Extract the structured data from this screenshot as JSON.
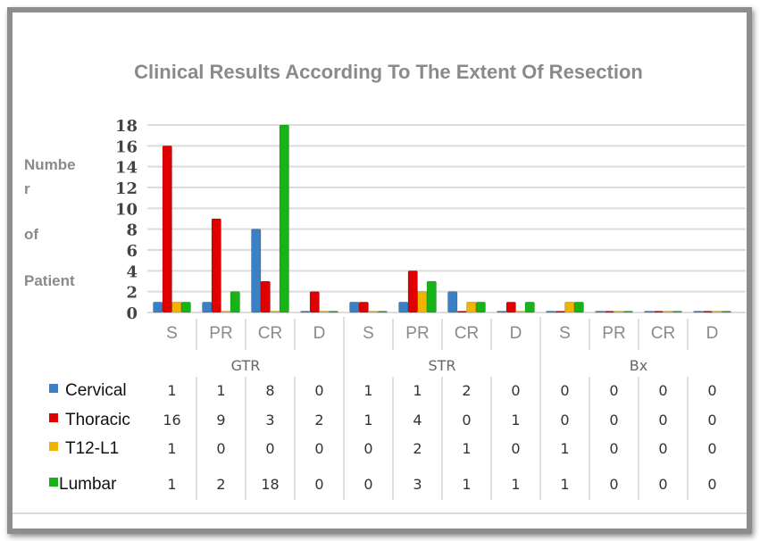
{
  "chart_data": {
    "type": "bar",
    "title": "Clinical Results According To The Extent Of Resection",
    "ylabel_lines": [
      "Numbe",
      "r",
      "of",
      "Patient"
    ],
    "ylim": [
      0,
      18
    ],
    "yticks": [
      0,
      2,
      4,
      6,
      8,
      10,
      12,
      14,
      16,
      18
    ],
    "grid": true,
    "legend": "bottom-table",
    "groups": [
      "GTR",
      "STR",
      "Bx"
    ],
    "categories": [
      "S",
      "PR",
      "CR",
      "D",
      "S",
      "PR",
      "CR",
      "D",
      "S",
      "PR",
      "CR",
      "D"
    ],
    "series": [
      {
        "name": "Cervical",
        "color": "#3b7fc4",
        "values": [
          1,
          1,
          8,
          0,
          1,
          1,
          2,
          0,
          0,
          0,
          0,
          0
        ]
      },
      {
        "name": "Thoracic",
        "color": "#e00000",
        "values": [
          16,
          9,
          3,
          2,
          1,
          4,
          0,
          1,
          0,
          0,
          0,
          0
        ]
      },
      {
        "name": "T12-L1",
        "color": "#f0b400",
        "values": [
          1,
          0,
          0,
          0,
          0,
          2,
          1,
          0,
          1,
          0,
          0,
          0
        ]
      },
      {
        "name": "Lumbar",
        "color": "#16b416",
        "values": [
          1,
          2,
          18,
          0,
          0,
          3,
          1,
          1,
          1,
          0,
          0,
          0
        ]
      }
    ]
  }
}
